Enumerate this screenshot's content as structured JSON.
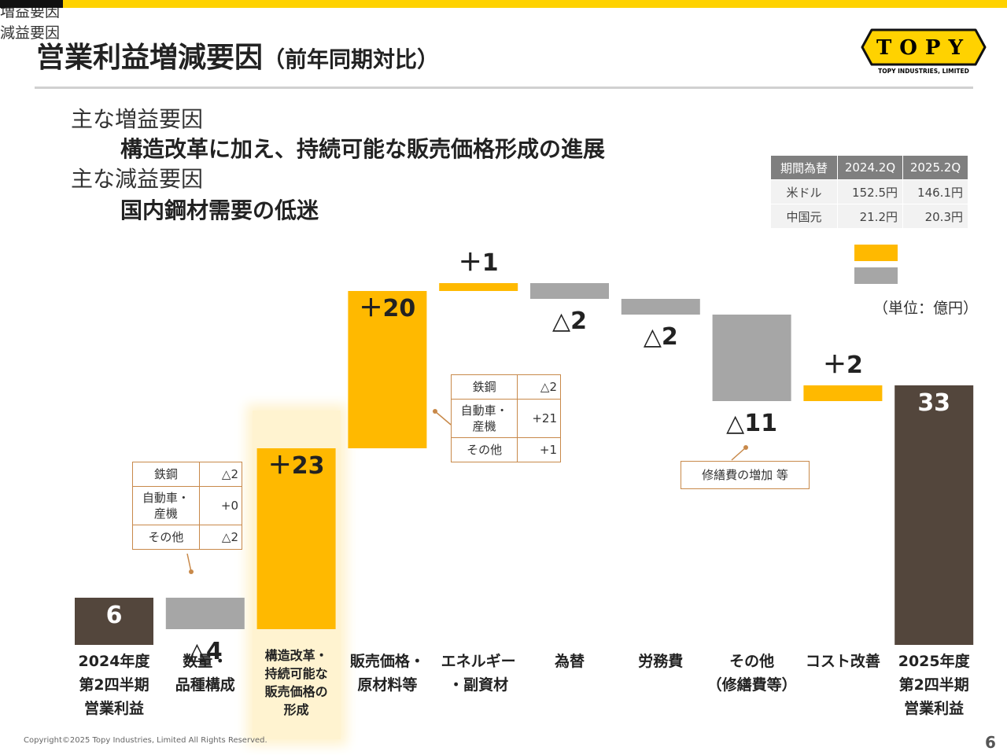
{
  "header": {
    "title": "営業利益増減要因",
    "subtitle": "（前年同期対比）"
  },
  "logo": {
    "name": "TOPY",
    "caption": "TOPY INDUSTRIES, LIMITED"
  },
  "summary": [
    {
      "heading": "主な増益要因",
      "text": "構造改革に加え、持続可能な販売価格形成の進展"
    },
    {
      "heading": "主な減益要因",
      "text": "国内鋼材需要の低迷"
    }
  ],
  "fx_table": {
    "header": [
      "期間為替",
      "2024.2Q",
      "2025.2Q"
    ],
    "rows": [
      [
        "米ドル",
        "152.5円",
        "146.1円"
      ],
      [
        "中国元",
        "21.2円",
        "20.3円"
      ]
    ]
  },
  "chart_data": {
    "type": "waterfall",
    "categories": [
      "2024年度\n第2四半期\n営業利益",
      "数量・\n品種構成",
      "構造改革・\n持続可能な\n販売価格の\n形成",
      "販売価格・\n原材料等",
      "エネルギー\n・副資材",
      "為替",
      "労務費",
      "その他\n（修繕費等）",
      "コスト改善",
      "2025年度\n第2四半期\n営業利益"
    ],
    "values": [
      6,
      -4,
      23,
      20,
      1,
      -2,
      -2,
      -11,
      2,
      33
    ],
    "value_labels": [
      "6",
      "△4",
      "＋23",
      "＋20",
      "＋1",
      "△2",
      "△2",
      "△11",
      "＋2",
      "33"
    ],
    "total_color": "#53463c",
    "increase_color": "#ffb900",
    "decrease_color": "#a6a6a6",
    "legend": [
      {
        "name": "増益要因",
        "color": "#ffb900"
      },
      {
        "name": "減益要因",
        "color": "#a6a6a6"
      }
    ],
    "unit": "（単位：億円）",
    "annotations": [
      {
        "rows": [
          [
            "鉄鋼",
            "△2"
          ],
          [
            "自動車・\n産機",
            "+0"
          ],
          [
            "その他",
            "△2"
          ]
        ]
      },
      {
        "rows": [
          [
            "鉄鋼",
            "△2"
          ],
          [
            "自動車・\n産機",
            "+21"
          ],
          [
            "その他",
            "+1"
          ]
        ]
      },
      {
        "text": "修繕費の増加 等"
      }
    ]
  },
  "footer": {
    "copyright": "Copyright©2025 Topy Industries, Limited All Rights Reserved.",
    "page": "6"
  }
}
